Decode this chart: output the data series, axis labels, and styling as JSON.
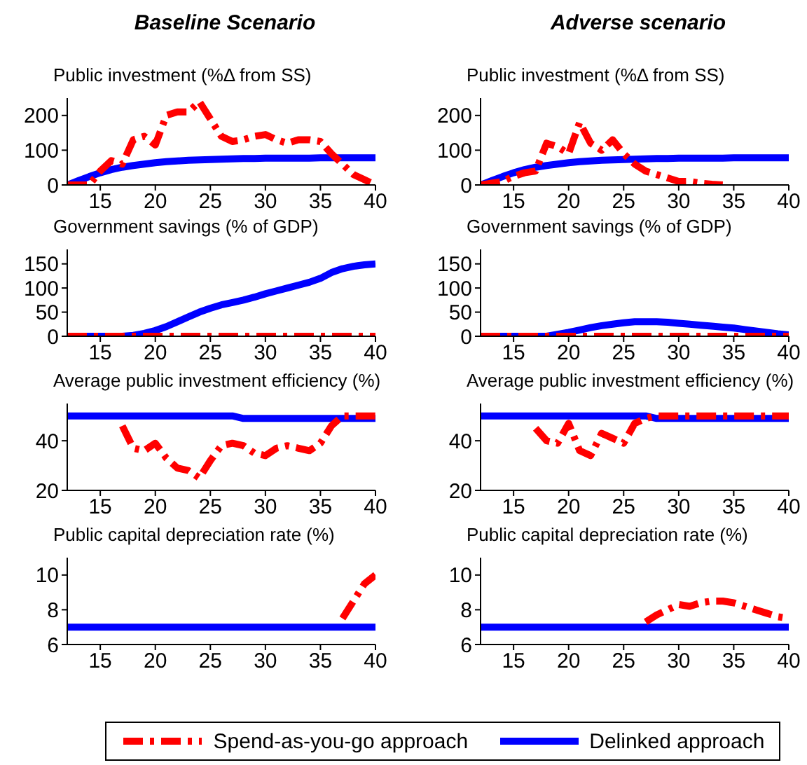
{
  "chart_data": [
    {
      "type": "line",
      "title": "Baseline Scenario",
      "subtitle": "Public investment (%Δ from SS)",
      "x": [
        12,
        13,
        14,
        15,
        16,
        17,
        18,
        19,
        20,
        21,
        22,
        23,
        24,
        25,
        26,
        27,
        28,
        29,
        30,
        31,
        32,
        33,
        34,
        35,
        36,
        37,
        38,
        39,
        40
      ],
      "xlim": [
        12,
        40
      ],
      "xticks": [
        15,
        20,
        25,
        30,
        35,
        40
      ],
      "ylim": [
        0,
        250
      ],
      "yticks": [
        0,
        100,
        200
      ],
      "series": [
        {
          "color": "#ff0000",
          "line_style": "dashed",
          "values": [
            0,
            0,
            0,
            40,
            70,
            60,
            130,
            140,
            115,
            200,
            210,
            210,
            240,
            190,
            140,
            125,
            130,
            140,
            145,
            130,
            120,
            130,
            130,
            125,
            90,
            60,
            30,
            15,
            0
          ]
        },
        {
          "color": "#0000ff",
          "line_style": "solid",
          "values": [
            0,
            12,
            24,
            35,
            44,
            51,
            56,
            60,
            64,
            67,
            69,
            71,
            72,
            73,
            74,
            75,
            76,
            76,
            77,
            77,
            77,
            77,
            77,
            78,
            78,
            78,
            78,
            78,
            78
          ]
        }
      ]
    },
    {
      "type": "line",
      "title": "Government savings (% of GDP)",
      "x": [
        12,
        13,
        14,
        15,
        16,
        17,
        18,
        19,
        20,
        21,
        22,
        23,
        24,
        25,
        26,
        27,
        28,
        29,
        30,
        31,
        32,
        33,
        34,
        35,
        36,
        37,
        38,
        39,
        40
      ],
      "xlim": [
        12,
        40
      ],
      "xticks": [
        15,
        20,
        25,
        30,
        35,
        40
      ],
      "ylim": [
        0,
        180
      ],
      "yticks": [
        0,
        50,
        100,
        150
      ],
      "series": [
        {
          "color": "#ff0000",
          "line_style": "dashed",
          "values": [
            0,
            0,
            0,
            0,
            0,
            0,
            0,
            0,
            0,
            0,
            0,
            0,
            0,
            0,
            0,
            0,
            0,
            0,
            0,
            0,
            0,
            0,
            0,
            0,
            0,
            0,
            0,
            0,
            0
          ]
        },
        {
          "color": "#0000ff",
          "line_style": "solid",
          "values": [
            0,
            0,
            0,
            0,
            0,
            0,
            2,
            6,
            12,
            20,
            30,
            40,
            50,
            58,
            65,
            70,
            75,
            81,
            88,
            94,
            100,
            106,
            112,
            120,
            132,
            140,
            145,
            148,
            150
          ]
        }
      ]
    },
    {
      "type": "line",
      "title": "Average public investment efficiency (%)",
      "x": [
        12,
        13,
        14,
        15,
        16,
        17,
        18,
        19,
        20,
        21,
        22,
        23,
        24,
        25,
        26,
        27,
        28,
        29,
        30,
        31,
        32,
        33,
        34,
        35,
        36,
        37,
        38,
        39,
        40
      ],
      "xlim": [
        12,
        40
      ],
      "xticks": [
        15,
        20,
        25,
        30,
        35,
        40
      ],
      "ylim": [
        20,
        55
      ],
      "yticks": [
        20,
        40
      ],
      "series": [
        {
          "color": "#ff0000",
          "line_style": "dashed",
          "values": [
            null,
            null,
            null,
            null,
            null,
            46,
            37,
            36,
            39,
            33,
            29,
            28,
            25,
            32,
            38,
            39,
            38,
            35,
            34,
            37,
            38,
            37,
            36,
            39,
            46,
            50,
            50,
            50,
            50
          ]
        },
        {
          "color": "#0000ff",
          "line_style": "solid",
          "values": [
            50,
            50,
            50,
            50,
            50,
            50,
            50,
            50,
            50,
            50,
            50,
            50,
            50,
            50,
            50,
            50,
            49,
            49,
            49,
            49,
            49,
            49,
            49,
            49,
            49,
            49,
            49,
            49,
            49
          ]
        }
      ]
    },
    {
      "type": "line",
      "title": "Public capital depreciation rate (%)",
      "x": [
        12,
        13,
        14,
        15,
        16,
        17,
        18,
        19,
        20,
        21,
        22,
        23,
        24,
        25,
        26,
        27,
        28,
        29,
        30,
        31,
        32,
        33,
        34,
        35,
        36,
        37,
        38,
        39,
        40
      ],
      "xlim": [
        12,
        40
      ],
      "xticks": [
        15,
        20,
        25,
        30,
        35,
        40
      ],
      "ylim": [
        6,
        11
      ],
      "yticks": [
        6,
        8,
        10
      ],
      "series": [
        {
          "color": "#ff0000",
          "line_style": "dashed",
          "values": [
            null,
            null,
            null,
            null,
            null,
            null,
            null,
            null,
            null,
            null,
            null,
            null,
            null,
            null,
            null,
            null,
            null,
            null,
            null,
            null,
            null,
            null,
            null,
            null,
            null,
            7.5,
            8.5,
            9.5,
            10
          ]
        },
        {
          "color": "#0000ff",
          "line_style": "solid",
          "values": [
            7,
            7,
            7,
            7,
            7,
            7,
            7,
            7,
            7,
            7,
            7,
            7,
            7,
            7,
            7,
            7,
            7,
            7,
            7,
            7,
            7,
            7,
            7,
            7,
            7,
            7,
            7,
            7,
            7
          ]
        }
      ]
    },
    {
      "type": "line",
      "title": "Adverse scenario",
      "subtitle": "Public investment (%Δ from SS)",
      "x": [
        12,
        13,
        14,
        15,
        16,
        17,
        18,
        19,
        20,
        21,
        22,
        23,
        24,
        25,
        26,
        27,
        28,
        29,
        30,
        31,
        32,
        33,
        34,
        35,
        36,
        37,
        38,
        39,
        40
      ],
      "xlim": [
        12,
        40
      ],
      "xticks": [
        15,
        20,
        25,
        30,
        35,
        40
      ],
      "ylim": [
        0,
        250
      ],
      "yticks": [
        0,
        100,
        200
      ],
      "series": [
        {
          "color": "#ff0000",
          "line_style": "dashed",
          "values": [
            0,
            5,
            10,
            25,
            35,
            40,
            120,
            110,
            90,
            180,
            120,
            100,
            130,
            90,
            60,
            40,
            30,
            20,
            10,
            10,
            5,
            2,
            0,
            null,
            null,
            null,
            null,
            null,
            null
          ]
        },
        {
          "color": "#0000ff",
          "line_style": "solid",
          "values": [
            0,
            12,
            24,
            35,
            44,
            51,
            56,
            60,
            64,
            67,
            69,
            71,
            72,
            73,
            74,
            75,
            76,
            76,
            77,
            77,
            77,
            77,
            77,
            78,
            78,
            78,
            78,
            78,
            78
          ]
        }
      ]
    },
    {
      "type": "line",
      "title": "Government savings (% of GDP)",
      "x": [
        12,
        13,
        14,
        15,
        16,
        17,
        18,
        19,
        20,
        21,
        22,
        23,
        24,
        25,
        26,
        27,
        28,
        29,
        30,
        31,
        32,
        33,
        34,
        35,
        36,
        37,
        38,
        39,
        40
      ],
      "xlim": [
        12,
        40
      ],
      "xticks": [
        15,
        20,
        25,
        30,
        35,
        40
      ],
      "ylim": [
        0,
        180
      ],
      "yticks": [
        0,
        50,
        100,
        150
      ],
      "series": [
        {
          "color": "#ff0000",
          "line_style": "dashed",
          "values": [
            0,
            0,
            0,
            0,
            0,
            0,
            0,
            0,
            0,
            0,
            0,
            0,
            0,
            0,
            0,
            0,
            0,
            0,
            0,
            0,
            0,
            0,
            0,
            0,
            0,
            0,
            0,
            0,
            0
          ]
        },
        {
          "color": "#0000ff",
          "line_style": "solid",
          "values": [
            0,
            0,
            0,
            0,
            0,
            0,
            0,
            4,
            8,
            13,
            18,
            22,
            25,
            28,
            30,
            30,
            30,
            29,
            27,
            25,
            23,
            21,
            19,
            17,
            14,
            11,
            8,
            5,
            3
          ]
        }
      ]
    },
    {
      "type": "line",
      "title": "Average public investment efficiency (%)",
      "x": [
        12,
        13,
        14,
        15,
        16,
        17,
        18,
        19,
        20,
        21,
        22,
        23,
        24,
        25,
        26,
        27,
        28,
        29,
        30,
        31,
        32,
        33,
        34,
        35,
        36,
        37,
        38,
        39,
        40
      ],
      "xlim": [
        12,
        40
      ],
      "xticks": [
        15,
        20,
        25,
        30,
        35,
        40
      ],
      "ylim": [
        20,
        55
      ],
      "yticks": [
        20,
        40
      ],
      "series": [
        {
          "color": "#ff0000",
          "line_style": "dashed",
          "values": [
            null,
            null,
            null,
            null,
            null,
            45,
            40,
            39,
            47,
            36,
            34,
            43,
            41,
            39,
            47,
            49,
            50,
            50,
            50,
            50,
            50,
            50,
            50,
            50,
            50,
            50,
            50,
            50,
            50
          ]
        },
        {
          "color": "#0000ff",
          "line_style": "solid",
          "values": [
            50,
            50,
            50,
            50,
            50,
            50,
            50,
            50,
            50,
            50,
            50,
            50,
            50,
            50,
            50,
            50,
            49,
            49,
            49,
            49,
            49,
            49,
            49,
            49,
            49,
            49,
            49,
            49,
            49
          ]
        }
      ]
    },
    {
      "type": "line",
      "title": "Public capital depreciation rate (%)",
      "x": [
        12,
        13,
        14,
        15,
        16,
        17,
        18,
        19,
        20,
        21,
        22,
        23,
        24,
        25,
        26,
        27,
        28,
        29,
        30,
        31,
        32,
        33,
        34,
        35,
        36,
        37,
        38,
        39,
        40
      ],
      "xlim": [
        12,
        40
      ],
      "xticks": [
        15,
        20,
        25,
        30,
        35,
        40
      ],
      "ylim": [
        6,
        11
      ],
      "yticks": [
        6,
        8,
        10
      ],
      "legend": "bottom",
      "series": [
        {
          "name": "Spend-as-you-go approach",
          "color": "#ff0000",
          "line_style": "dashed",
          "values": [
            null,
            null,
            null,
            null,
            null,
            null,
            null,
            null,
            null,
            null,
            null,
            null,
            null,
            null,
            null,
            7.3,
            7.7,
            8.0,
            8.3,
            8.2,
            8.4,
            8.5,
            8.5,
            8.4,
            8.2,
            8.0,
            7.8,
            7.6,
            7.5
          ]
        },
        {
          "name": "Delinked approach",
          "color": "#0000ff",
          "line_style": "solid",
          "values": [
            7,
            7,
            7,
            7,
            7,
            7,
            7,
            7,
            7,
            7,
            7,
            7,
            7,
            7,
            7,
            7,
            7,
            7,
            7,
            7,
            7,
            7,
            7,
            7,
            7,
            7,
            7,
            7,
            7
          ]
        }
      ]
    }
  ]
}
